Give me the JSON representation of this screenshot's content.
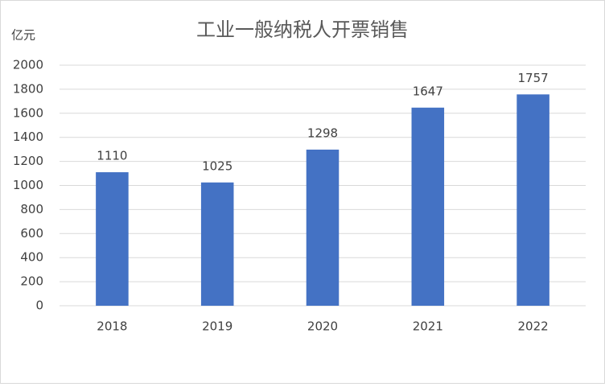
{
  "chart_data": {
    "type": "bar",
    "title": "工业一般纳税人开票销售",
    "y_label": "亿元",
    "categories": [
      "2018",
      "2019",
      "2020",
      "2021",
      "2022"
    ],
    "values": [
      1110,
      1025,
      1298,
      1647,
      1757
    ],
    "color": "#4472c4",
    "ylim": [
      0,
      2000
    ],
    "yticks": [
      0,
      200,
      400,
      600,
      800,
      1000,
      1200,
      1400,
      1600,
      1800,
      2000
    ],
    "grid": true
  }
}
